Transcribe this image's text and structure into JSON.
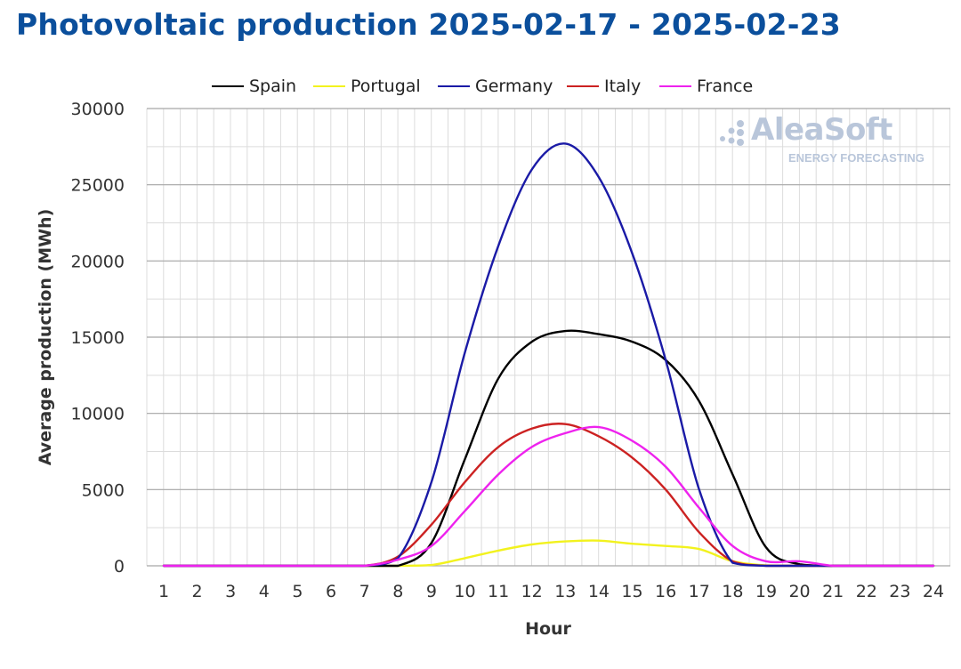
{
  "title": "Photovoltaic production 2025-02-17 - 2025-02-23",
  "watermark": {
    "name": "AleaSoft",
    "tagline": "ENERGY FORECASTING"
  },
  "chart_data": {
    "type": "line",
    "title": "Photovoltaic production 2025-02-17 - 2025-02-23",
    "xlabel": "Hour",
    "ylabel": "Average production (MWh)",
    "x": [
      1,
      2,
      3,
      4,
      5,
      6,
      7,
      8,
      9,
      10,
      11,
      12,
      13,
      14,
      15,
      16,
      17,
      18,
      19,
      20,
      21,
      22,
      23,
      24
    ],
    "xlim": [
      1,
      24
    ],
    "ylim": [
      0,
      30000
    ],
    "yticks": [
      0,
      5000,
      10000,
      15000,
      20000,
      25000,
      30000
    ],
    "grid": true,
    "legend_position": "top",
    "series": [
      {
        "name": "Spain",
        "color": "#000000",
        "values": [
          0,
          0,
          0,
          0,
          0,
          0,
          0,
          0,
          1500,
          7000,
          12300,
          14700,
          15400,
          15200,
          14700,
          13500,
          10800,
          6000,
          1200,
          100,
          0,
          0,
          0,
          0
        ]
      },
      {
        "name": "Portugal",
        "color": "#f2f21e",
        "values": [
          0,
          0,
          0,
          0,
          0,
          0,
          0,
          0,
          50,
          500,
          1000,
          1400,
          1600,
          1650,
          1450,
          1300,
          1100,
          300,
          30,
          0,
          0,
          0,
          0,
          0
        ]
      },
      {
        "name": "Germany",
        "color": "#1a1aa6",
        "values": [
          0,
          0,
          0,
          0,
          0,
          0,
          0,
          500,
          5500,
          14000,
          21000,
          26000,
          27700,
          25500,
          20500,
          13500,
          5000,
          200,
          0,
          0,
          0,
          0,
          0,
          0
        ]
      },
      {
        "name": "Italy",
        "color": "#cc2222",
        "values": [
          0,
          0,
          0,
          0,
          0,
          0,
          0,
          600,
          2700,
          5500,
          7800,
          9000,
          9300,
          8500,
          7100,
          5000,
          2200,
          300,
          0,
          0,
          0,
          0,
          0,
          0
        ]
      },
      {
        "name": "France",
        "color": "#ee22ee",
        "values": [
          0,
          0,
          0,
          0,
          0,
          0,
          0,
          400,
          1300,
          3600,
          6000,
          7800,
          8700,
          9100,
          8200,
          6500,
          3800,
          1300,
          300,
          300,
          0,
          0,
          0,
          0
        ]
      }
    ]
  }
}
